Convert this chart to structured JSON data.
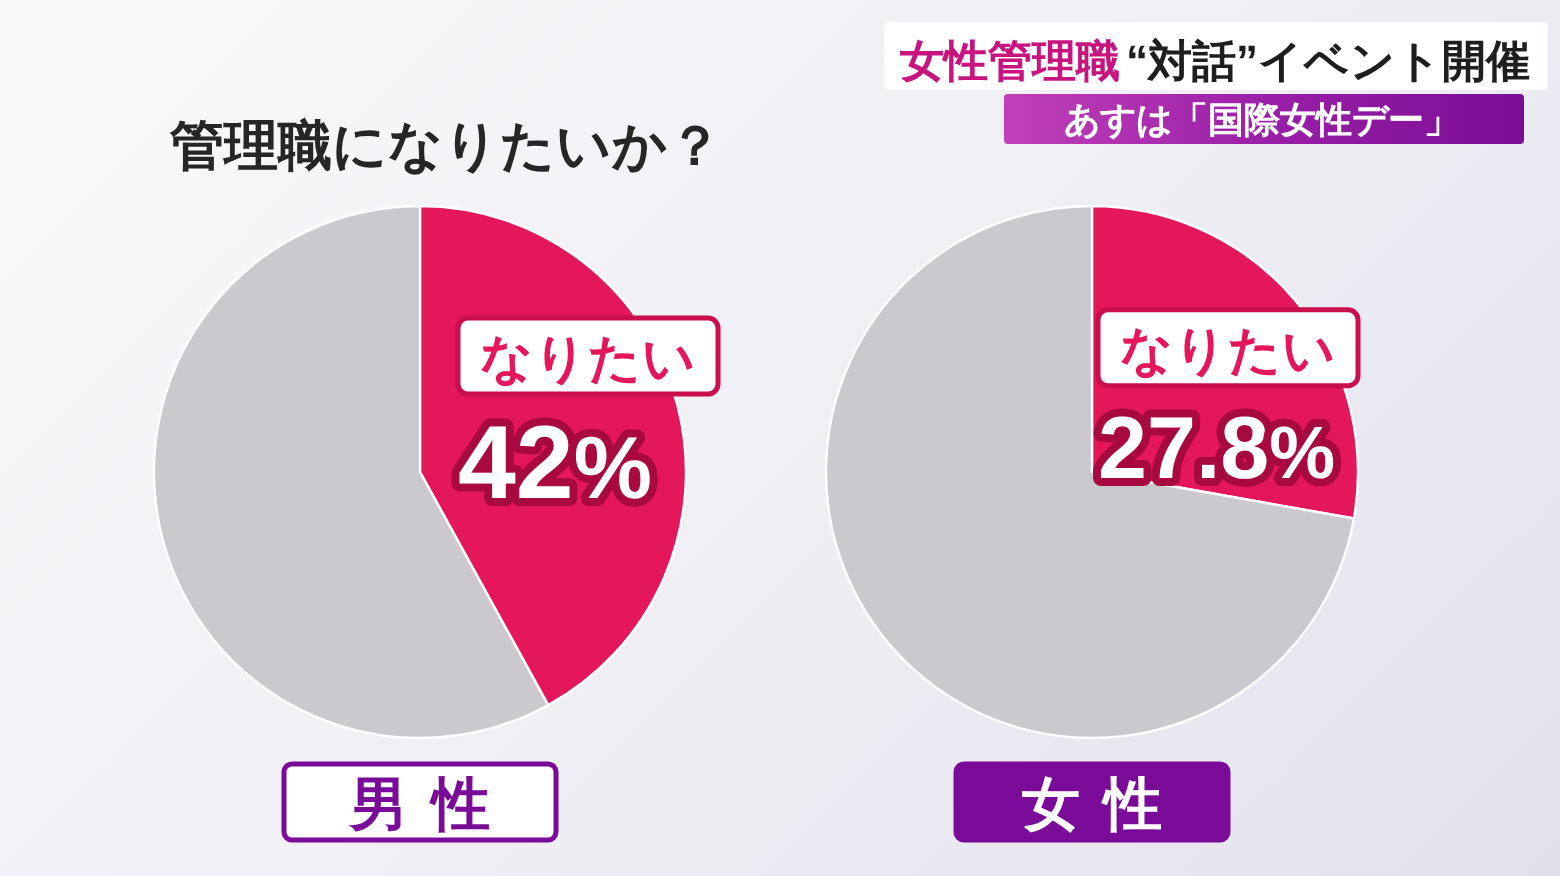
{
  "chart_data": [
    {
      "type": "other",
      "title": "管理職になりたいか？",
      "annotations": [
        "女性管理職",
        "“対話”イベント開催",
        "あすは「国際女性デー」"
      ]
    },
    {
      "type": "pie",
      "title": "男性",
      "categories": [
        "なりたい",
        null
      ],
      "values": [
        42,
        58
      ],
      "colors": [
        "#e3175a",
        "#cbc9ce"
      ],
      "value_labels": [
        "42%",
        null
      ]
    },
    {
      "type": "pie",
      "title": "女性",
      "categories": [
        "なりたい",
        null
      ],
      "values": [
        27.8,
        72.2
      ],
      "colors": [
        "#e3175a",
        "#cbc9ce"
      ],
      "value_labels": [
        "27.8%",
        null
      ]
    }
  ]
}
